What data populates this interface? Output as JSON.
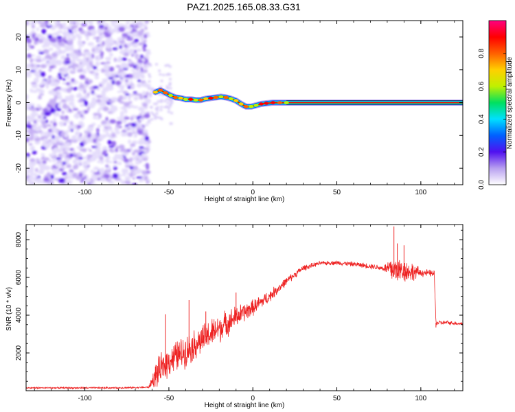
{
  "title": "PAZ1.2025.165.08.33.G31",
  "chart_data": [
    {
      "type": "heatmap",
      "xlabel": "Height of straight line (km)",
      "ylabel": "Frequency (Hz)",
      "xlim": [
        -135,
        125
      ],
      "ylim": [
        -25,
        25
      ],
      "xticks": [
        -100,
        -50,
        0,
        50,
        100
      ],
      "yticks": [
        -20,
        -10,
        0,
        10,
        20
      ],
      "colorbar": {
        "label": "Normalized spectral amplitude",
        "range": [
          0,
          1
        ],
        "ticks": [
          0.0,
          0.2,
          0.4,
          0.6,
          0.8
        ],
        "colors": [
          "#ffffff",
          "#b8a0f0",
          "#5010f0",
          "#0060ff",
          "#00e0ff",
          "#00e060",
          "#c0f000",
          "#ffd000",
          "#ff6000",
          "#ff0000",
          "#ff0080"
        ]
      },
      "noise_region": [
        -135,
        -62
      ],
      "tones": [
        {
          "x": -58,
          "f": 3.2
        },
        {
          "x": -55,
          "f": 3.8
        },
        {
          "x": -52,
          "f": 3.0
        },
        {
          "x": -49,
          "f": 2.2
        },
        {
          "x": -46,
          "f": 1.6
        },
        {
          "x": -43,
          "f": 1.4
        },
        {
          "x": -40,
          "f": 1.0
        },
        {
          "x": -37,
          "f": 1.0
        },
        {
          "x": -34,
          "f": 0.8
        },
        {
          "x": -31,
          "f": 0.8
        },
        {
          "x": -28,
          "f": 1.2
        },
        {
          "x": -25,
          "f": 1.4
        },
        {
          "x": -22,
          "f": 1.6
        },
        {
          "x": -19,
          "f": 1.8
        },
        {
          "x": -16,
          "f": 1.6
        },
        {
          "x": -13,
          "f": 1.2
        },
        {
          "x": -10,
          "f": 0.6
        },
        {
          "x": -7,
          "f": -0.4
        },
        {
          "x": -4,
          "f": -1.2
        },
        {
          "x": -1,
          "f": -1.2
        },
        {
          "x": 2,
          "f": -0.8
        },
        {
          "x": 5,
          "f": -0.4
        },
        {
          "x": 8,
          "f": -0.2
        },
        {
          "x": 12,
          "f": 0.0
        },
        {
          "x": 16,
          "f": 0.0
        },
        {
          "x": 20,
          "f": 0.0
        },
        {
          "x": 125,
          "f": 0.0
        }
      ]
    },
    {
      "type": "line",
      "xlabel": "Height of straight line (km)",
      "ylabel": "SNR (10 * v/v)",
      "xlim": [
        -135,
        125
      ],
      "ylim": [
        0,
        8800
      ],
      "xticks": [
        -100,
        -50,
        0,
        50,
        100
      ],
      "yticks": [
        2000,
        4000,
        6000,
        8000
      ],
      "color": "#ee2222",
      "envelope": [
        {
          "x": -135,
          "y": 150
        },
        {
          "x": -80,
          "y": 150
        },
        {
          "x": -62,
          "y": 180
        },
        {
          "x": -58,
          "y": 800
        },
        {
          "x": -50,
          "y": 1600
        },
        {
          "x": -40,
          "y": 2100
        },
        {
          "x": -30,
          "y": 2700
        },
        {
          "x": -20,
          "y": 3300
        },
        {
          "x": -10,
          "y": 3900
        },
        {
          "x": 0,
          "y": 4400
        },
        {
          "x": 10,
          "y": 5000
        },
        {
          "x": 20,
          "y": 5800
        },
        {
          "x": 30,
          "y": 6500
        },
        {
          "x": 40,
          "y": 6750
        },
        {
          "x": 50,
          "y": 6780
        },
        {
          "x": 60,
          "y": 6700
        },
        {
          "x": 70,
          "y": 6600
        },
        {
          "x": 80,
          "y": 6450
        },
        {
          "x": 90,
          "y": 6350
        },
        {
          "x": 100,
          "y": 6250
        },
        {
          "x": 108,
          "y": 6200
        },
        {
          "x": 109,
          "y": 3600
        },
        {
          "x": 115,
          "y": 3600
        },
        {
          "x": 125,
          "y": 3550
        }
      ],
      "noise": [
        {
          "x": -135,
          "amp": 50
        },
        {
          "x": -62,
          "amp": 50
        },
        {
          "x": -57,
          "amp": 900
        },
        {
          "x": -45,
          "amp": 1000
        },
        {
          "x": -20,
          "amp": 900
        },
        {
          "x": 0,
          "amp": 500
        },
        {
          "x": 20,
          "amp": 250
        },
        {
          "x": 40,
          "amp": 120
        },
        {
          "x": 78,
          "amp": 180
        },
        {
          "x": 82,
          "amp": 900
        },
        {
          "x": 95,
          "amp": 600
        },
        {
          "x": 100,
          "amp": 250
        },
        {
          "x": 108,
          "amp": 200
        },
        {
          "x": 109,
          "amp": 150
        },
        {
          "x": 125,
          "amp": 100
        }
      ],
      "spikes": [
        {
          "x": -52,
          "y": 4050
        },
        {
          "x": -38,
          "y": 4800
        },
        {
          "x": -28,
          "y": 4200
        },
        {
          "x": -10,
          "y": 5200
        },
        {
          "x": 84,
          "y": 8700
        },
        {
          "x": 86,
          "y": 7800
        },
        {
          "x": 90,
          "y": 7700
        },
        {
          "x": 109,
          "y": 3350
        }
      ]
    }
  ]
}
